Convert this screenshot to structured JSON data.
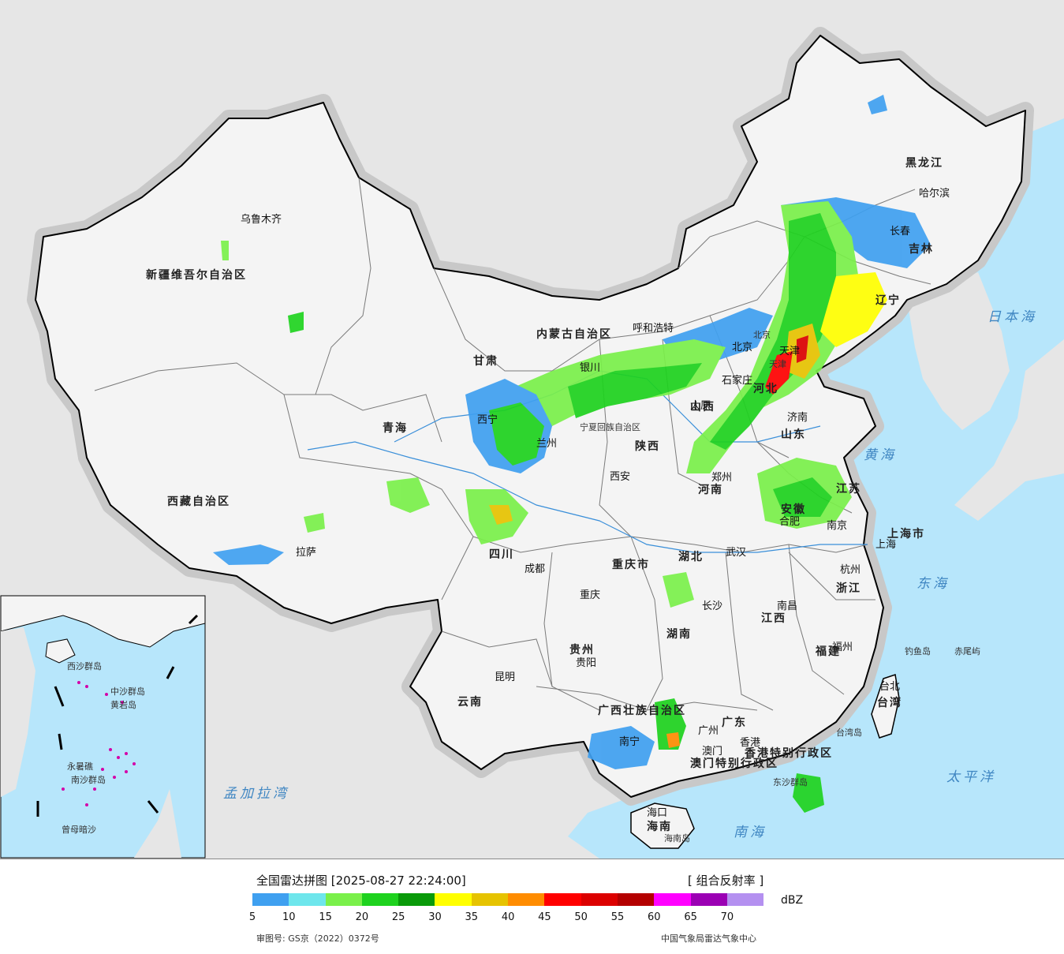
{
  "title": "全国雷达拼图 [2025-08-27 22:24:00]",
  "product": "[ 组合反射率 ]",
  "unit": "dBZ",
  "approval": "审图号: GS京（2022）0372号",
  "agency": "中国气象局雷达气象中心",
  "scale": {
    "colors": [
      "#3fa0f0",
      "#6ee6ec",
      "#7af04a",
      "#1ed21e",
      "#0a9a0a",
      "#ffff00",
      "#e6c300",
      "#ff8c00",
      "#ff0000",
      "#dc0000",
      "#b40000",
      "#ff00ff",
      "#9b00b4",
      "#b490f0"
    ],
    "labels": [
      "5",
      "10",
      "15",
      "20",
      "25",
      "30",
      "35",
      "40",
      "45",
      "50",
      "55",
      "60",
      "65",
      "70"
    ]
  },
  "colors": {
    "sea": "#b7e6fb",
    "land_outside": "#e6e6e6",
    "land_china": "#f4f4f4",
    "border": "#000000"
  },
  "provinces": [
    "新疆维吾尔自治区",
    "西藏自治区",
    "青海",
    "甘肃",
    "内蒙古自治区",
    "黑龙江",
    "吉林",
    "辽宁",
    "河北",
    "山西",
    "陕西",
    "四川",
    "云南",
    "贵州",
    "广西壮族自治区",
    "广东",
    "湖南",
    "湖北",
    "河南",
    "山东",
    "江苏",
    "安徽",
    "浙江",
    "江西",
    "福建",
    "重庆市",
    "上海市",
    "宁夏回族自治区",
    "海南",
    "台湾",
    "香港特别行政区",
    "澳门特别行政区",
    "天津",
    "北京"
  ],
  "cities": [
    "乌鲁木齐",
    "拉萨",
    "西宁",
    "兰州",
    "银川",
    "呼和浩特",
    "北京",
    "天津",
    "石家庄",
    "太原",
    "济南",
    "郑州",
    "西安",
    "合肥",
    "南京",
    "上海",
    "杭州",
    "武汉",
    "长沙",
    "南昌",
    "福州",
    "台北",
    "广州",
    "香港",
    "澳门",
    "南宁",
    "海口",
    "贵阳",
    "昆明",
    "成都",
    "重庆",
    "长春",
    "哈尔滨"
  ],
  "seas": [
    "日本海",
    "黄海",
    "东海",
    "太平洋",
    "南海",
    "孟加拉湾"
  ],
  "islands": [
    "钓鱼岛",
    "赤尾屿",
    "东沙群岛",
    "海南岛",
    "台湾岛",
    "西沙群岛",
    "中沙群岛",
    "南沙群岛",
    "黄岩岛",
    "永暑礁",
    "曾母暗沙"
  ]
}
